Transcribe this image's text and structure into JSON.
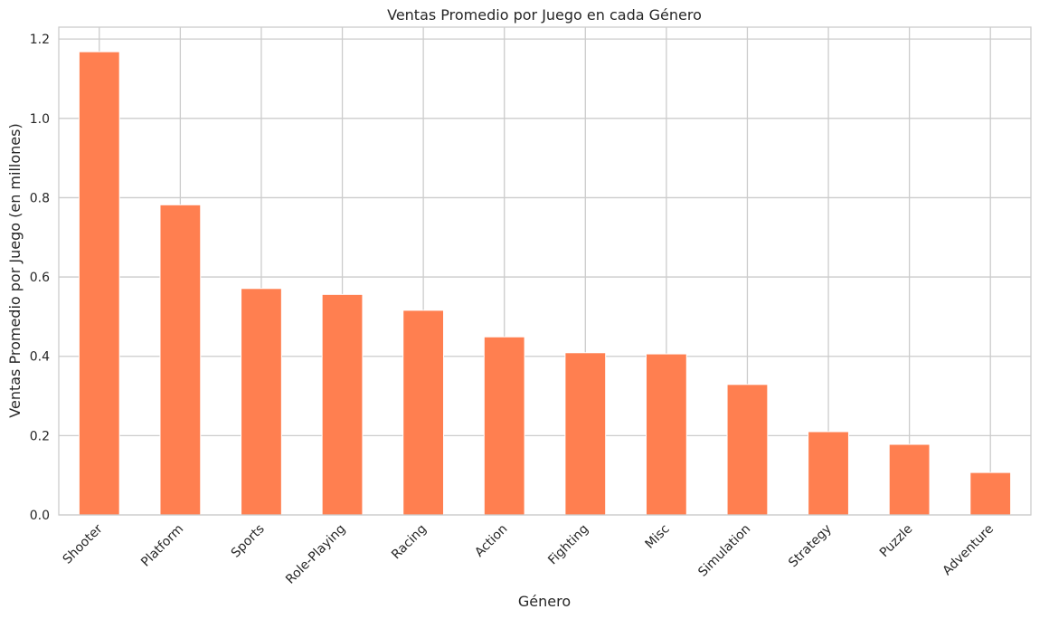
{
  "chart_data": {
    "type": "bar",
    "title": "Ventas Promedio por Juego en cada Género",
    "xlabel": "Género",
    "ylabel": "Ventas Promedio por Juego (en millones)",
    "categories": [
      "Shooter",
      "Platform",
      "Sports",
      "Role-Playing",
      "Racing",
      "Action",
      "Fighting",
      "Misc",
      "Simulation",
      "Strategy",
      "Puzzle",
      "Adventure"
    ],
    "values": [
      1.168,
      0.782,
      0.571,
      0.556,
      0.516,
      0.449,
      0.409,
      0.406,
      0.329,
      0.21,
      0.178,
      0.107
    ],
    "ylim": [
      0,
      1.23
    ],
    "yticks": [
      "0.0",
      "0.2",
      "0.4",
      "0.6",
      "0.8",
      "1.0",
      "1.2"
    ],
    "grid": true,
    "bar_color": "#ff7f50",
    "grid_color": "#cccccc"
  }
}
